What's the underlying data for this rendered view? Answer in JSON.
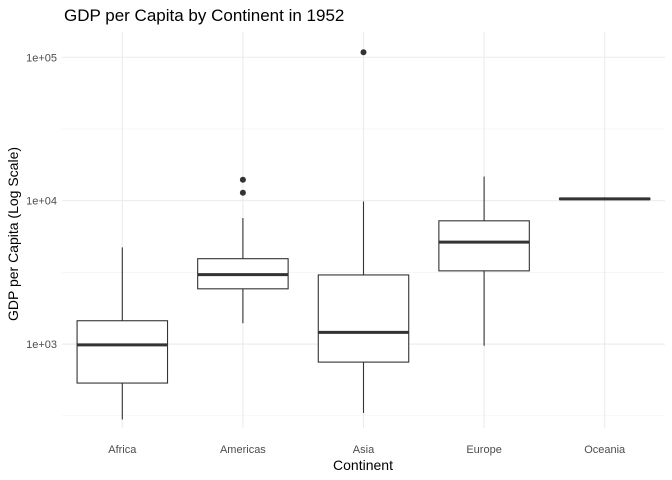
{
  "chart_data": {
    "type": "boxplot",
    "title": "GDP per Capita by Continent in 1952",
    "xlabel": "Continent",
    "ylabel": "GDP per Capita (Log Scale)",
    "y_scale": "log10",
    "ylim": [
      260,
      150000
    ],
    "y_ticks": [
      {
        "value": 1000,
        "label": "1e+03"
      },
      {
        "value": 10000,
        "label": "1e+04"
      },
      {
        "value": 100000,
        "label": "1e+05"
      }
    ],
    "y_minor_ticks": [
      316,
      3162,
      31623
    ],
    "grid": true,
    "categories": [
      "Africa",
      "Americas",
      "Asia",
      "Europe",
      "Oceania"
    ],
    "boxes": [
      {
        "category": "Africa",
        "min": 298,
        "q1": 535,
        "median": 988,
        "q3": 1455,
        "max": 4725,
        "outliers": []
      },
      {
        "category": "Americas",
        "min": 1398,
        "q1": 2429,
        "median": 3048,
        "q3": 3940,
        "max": 7568,
        "outliers": [
          11367,
          13990
        ]
      },
      {
        "category": "Asia",
        "min": 331,
        "q1": 749,
        "median": 1207,
        "q3": 3035,
        "max": 9867,
        "outliers": [
          108382
        ]
      },
      {
        "category": "Europe",
        "min": 974,
        "q1": 3241,
        "median": 5142,
        "q3": 7237,
        "max": 14734,
        "outliers": []
      },
      {
        "category": "Oceania",
        "min": 10040,
        "q1": 10195,
        "median": 10298,
        "q3": 10401,
        "max": 10557,
        "outliers": []
      }
    ]
  }
}
